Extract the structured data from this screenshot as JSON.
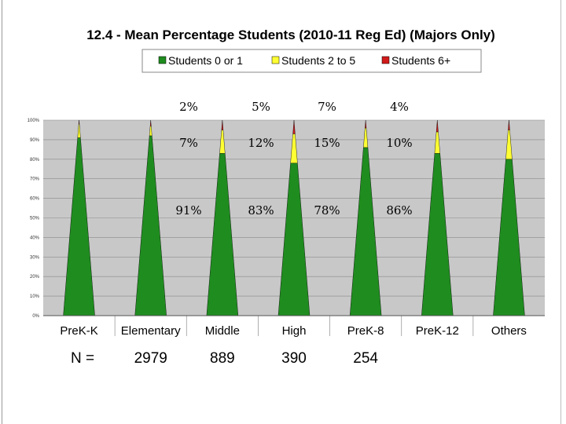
{
  "chart_data": {
    "type": "area",
    "title": "12.4 - Mean Percentage Students (2010-11 Reg Ed) (Majors Only)",
    "categories": [
      "PreK-K",
      "Elementary",
      "Middle",
      "High",
      "PreK-8",
      "PreK-12",
      "Others"
    ],
    "series": [
      {
        "name": "Students 0 or 1",
        "color": "#1f8c1f",
        "values": [
          91,
          92,
          83,
          78,
          86,
          83,
          80
        ]
      },
      {
        "name": "Students 2 to 5",
        "color": "#ffff33",
        "values": [
          7,
          5,
          12,
          15,
          10,
          11,
          15
        ]
      },
      {
        "name": "Students 6+",
        "color": "#d11a1a",
        "values": [
          2,
          3,
          5,
          7,
          4,
          6,
          5
        ]
      }
    ],
    "ylim": [
      0,
      100
    ],
    "yticks": [
      "0%",
      "10%",
      "20%",
      "30%",
      "40%",
      "50%",
      "60%",
      "70%",
      "80%",
      "90%",
      "100%"
    ],
    "n_label": "N =",
    "n_values": [
      "",
      "2979",
      "889",
      "390",
      "254",
      "",
      ""
    ],
    "annotations": {
      "top_row": [
        "2%",
        "5%",
        "7%",
        "4%"
      ],
      "middle_row": [
        "7%",
        "12%",
        "15%",
        "10%"
      ],
      "bottom_row": [
        "91%",
        "83%",
        "78%",
        "86%"
      ]
    },
    "plot_background": "#c8c8c8",
    "grid": true,
    "legend_position": "top"
  }
}
